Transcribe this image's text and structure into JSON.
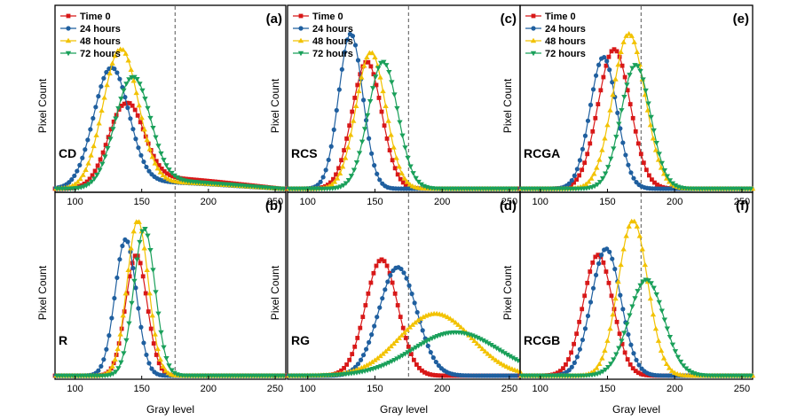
{
  "figure": {
    "xlabel": "Gray level",
    "ylabel": "Pixel Count",
    "threshold_line": 175,
    "xlim": [
      85,
      258
    ],
    "xticks": [
      100,
      150,
      200,
      250
    ]
  },
  "legend": [
    "Time 0",
    "24 hours",
    "48 hours",
    "72 hours"
  ],
  "colors": {
    "Time 0": "#d81818",
    "24 hours": "#1f5f9f",
    "48 hours": "#f2c200",
    "72 hours": "#1aa05a"
  },
  "chart_data": [
    {
      "type": "line",
      "panel": "(a)",
      "sample": "CD",
      "show_legend": true,
      "ylim": [
        0,
        1.15
      ],
      "series": [
        {
          "name": "Time 0",
          "mean": 138,
          "sd": 13,
          "amp": 0.55,
          "tail": 0.11,
          "tail_end": 255
        },
        {
          "name": "24 hours",
          "mean": 127,
          "sd": 13,
          "amp": 0.78,
          "tail": 0.07,
          "tail_end": 255
        },
        {
          "name": "48 hours",
          "mean": 134,
          "sd": 13,
          "amp": 0.9,
          "tail": 0.07,
          "tail_end": 255
        },
        {
          "name": "72 hours",
          "mean": 143,
          "sd": 13,
          "amp": 0.72,
          "tail": 0.08,
          "tail_end": 255
        }
      ]
    },
    {
      "type": "line",
      "panel": "(b)",
      "sample": "R",
      "show_legend": false,
      "ylim": [
        0,
        1.15
      ],
      "series": [
        {
          "name": "Time 0",
          "mean": 146,
          "sd": 8,
          "amp": 0.78,
          "tail": 0.0,
          "tail_end": 0
        },
        {
          "name": "24 hours",
          "mean": 138,
          "sd": 8,
          "amp": 0.88,
          "tail": 0.0,
          "tail_end": 0
        },
        {
          "name": "48 hours",
          "mean": 147,
          "sd": 8,
          "amp": 1.0,
          "tail": 0.0,
          "tail_end": 0
        },
        {
          "name": "72 hours",
          "mean": 152,
          "sd": 8,
          "amp": 0.95,
          "tail": 0.0,
          "tail_end": 0
        }
      ]
    },
    {
      "type": "line",
      "panel": "(c)",
      "sample": "RCS",
      "show_legend": true,
      "ylim": [
        0,
        1.15
      ],
      "series": [
        {
          "name": "Time 0",
          "mean": 144,
          "sd": 11,
          "amp": 0.82,
          "tail": 0.0,
          "tail_end": 0
        },
        {
          "name": "24 hours",
          "mean": 132,
          "sd": 9,
          "amp": 1.0,
          "tail": 0.0,
          "tail_end": 0
        },
        {
          "name": "48 hours",
          "mean": 147,
          "sd": 11,
          "amp": 0.88,
          "tail": 0.0,
          "tail_end": 0
        },
        {
          "name": "72 hours",
          "mean": 156,
          "sd": 11,
          "amp": 0.82,
          "tail": 0.0,
          "tail_end": 0
        }
      ]
    },
    {
      "type": "line",
      "panel": "(d)",
      "sample": "RG",
      "show_legend": false,
      "ylim": [
        0,
        1.15
      ],
      "series": [
        {
          "name": "Time 0",
          "mean": 155,
          "sd": 12,
          "amp": 0.75,
          "tail": 0.0,
          "tail_end": 0
        },
        {
          "name": "24 hours",
          "mean": 167,
          "sd": 14,
          "amp": 0.7,
          "tail": 0.0,
          "tail_end": 0
        },
        {
          "name": "48 hours",
          "mean": 195,
          "sd": 27,
          "amp": 0.4,
          "tail": 0.0,
          "tail_end": 0
        },
        {
          "name": "72 hours",
          "mean": 210,
          "sd": 32,
          "amp": 0.28,
          "tail": 0.0,
          "tail_end": 0
        }
      ]
    },
    {
      "type": "line",
      "panel": "(e)",
      "sample": "RCGA",
      "show_legend": true,
      "ylim": [
        0,
        1.15
      ],
      "series": [
        {
          "name": "Time 0",
          "mean": 155,
          "sd": 12,
          "amp": 0.9,
          "tail": 0.0,
          "tail_end": 0
        },
        {
          "name": "24 hours",
          "mean": 147,
          "sd": 10,
          "amp": 0.85,
          "tail": 0.0,
          "tail_end": 0
        },
        {
          "name": "48 hours",
          "mean": 166,
          "sd": 12,
          "amp": 1.0,
          "tail": 0.0,
          "tail_end": 0
        },
        {
          "name": "72 hours",
          "mean": 171,
          "sd": 11,
          "amp": 0.8,
          "tail": 0.0,
          "tail_end": 0
        }
      ]
    },
    {
      "type": "line",
      "panel": "(f)",
      "sample": "RCGB",
      "show_legend": false,
      "ylim": [
        0,
        1.15
      ],
      "series": [
        {
          "name": "Time 0",
          "mean": 143,
          "sd": 11,
          "amp": 0.78,
          "tail": 0.0,
          "tail_end": 0
        },
        {
          "name": "24 hours",
          "mean": 149,
          "sd": 11,
          "amp": 0.82,
          "tail": 0.0,
          "tail_end": 0
        },
        {
          "name": "48 hours",
          "mean": 169,
          "sd": 11,
          "amp": 1.0,
          "tail": 0.0,
          "tail_end": 0
        },
        {
          "name": "72 hours",
          "mean": 179,
          "sd": 13,
          "amp": 0.62,
          "tail": 0.0,
          "tail_end": 0
        }
      ]
    }
  ]
}
